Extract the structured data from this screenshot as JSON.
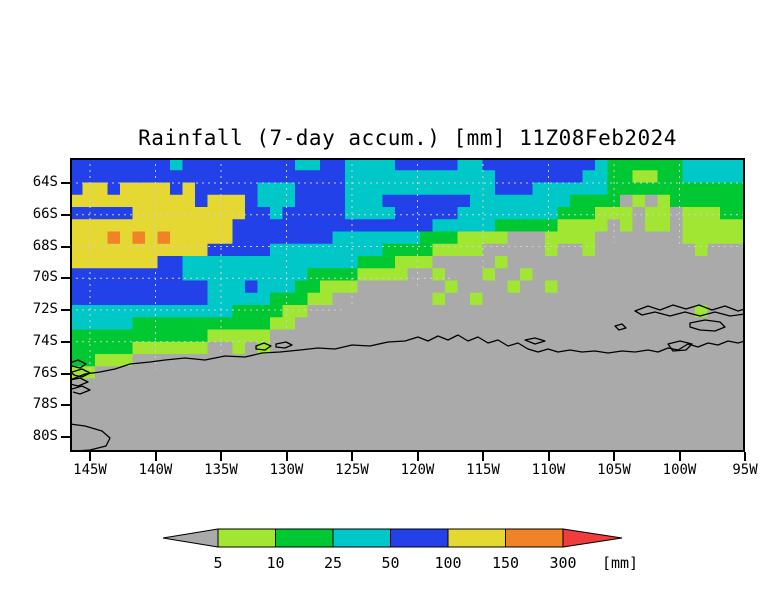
{
  "chart_data": {
    "type": "heatmap",
    "title": "Rainfall (7-day accum.) [mm] 11Z08Feb2024",
    "x_axis": {
      "ticks": [
        "145W",
        "140W",
        "135W",
        "130W",
        "125W",
        "120W",
        "115W",
        "110W",
        "105W",
        "100W",
        "95W"
      ]
    },
    "y_axis": {
      "ticks": [
        "64S",
        "66S",
        "68S",
        "70S",
        "72S",
        "74S",
        "76S",
        "78S",
        "80S"
      ]
    },
    "colorbar": {
      "levels": [
        "5",
        "10",
        "25",
        "50",
        "100",
        "150",
        "300"
      ],
      "unit_label": "[mm]",
      "below_color": "#AAAAAA",
      "above_color": "#F03C3C",
      "segment_colors": [
        "#A0E632",
        "#00C832",
        "#00C8C8",
        "#2341E8",
        "#E6D832",
        "#F08228"
      ]
    },
    "palette": {
      "0": "#AAAAAA",
      "1": "#A0E632",
      "2": "#00C832",
      "3": "#00C8C8",
      "4": "#2341E8",
      "5": "#E6D832",
      "6": "#F08228"
    },
    "palette_meaning": {
      "0": "< 5 mm (gray / no significant rain, incl. land mask)",
      "1": "5-10 mm",
      "2": "10-25 mm",
      "3": "25-50 mm",
      "4": "50-100 mm",
      "5": "100-150 mm",
      "6": "150-300 mm"
    },
    "grid": {
      "cols": 54,
      "rows": 24,
      "encoding": "one char per cell, row-major from map top-left; codes per palette",
      "rows_data": [
        "444444443444444444334433334444433444444444322222233333",
        "444444444444444444444433333333333344444443322112233333",
        "455455554544444333444433333333333344433333322222222222",
        "555555555545554333444433344444443333333322220101222222",
        "444445555555554434444433334444433333333222111011011122",
        "555555555555544444444444444443333322222111101011011111",
        "555656565555544444444333333322211110001111000000011111",
        "555555555554444433333333322221111000001001000000001000",
        "555555544333333333333332221110000010000000000000000000",
        "444444444333333333322221111001000100100000000000000000",
        "444444444443334333221110000000100001001000000000000000",
        "444444444443333322211000000001001000000000000000000000",
        "333333333333322221100000000000000000000000000000001000",
        "333332222222222211000000000000000000000000000000000000",
        "222222222221111100000000000000000000000000000000000000",
        "222221111110010100000000000000000000000000000000000000",
        "221110000000000000000000000000000000000000000000000000",
        "110000000000000000000000000000000000000000000000000000",
        "000000000000000000000000000000000000000000000000000000",
        "000000000000000000000000000000000000000000000000000000",
        "000000000000000000000000000000000000000000000000000000",
        "000000000000000000000000000000000000000000000000000000",
        "000000000000000000000000000000000000000000000000000000",
        "000000000000000000000000000000000000000000000000000000"
      ]
    },
    "coastline": {
      "main": [
        [
          0,
          222
        ],
        [
          15,
          216
        ],
        [
          30,
          214
        ],
        [
          45,
          211
        ],
        [
          60,
          206
        ],
        [
          80,
          204
        ],
        [
          95,
          202
        ],
        [
          115,
          200
        ],
        [
          135,
          202
        ],
        [
          155,
          198
        ],
        [
          175,
          199
        ],
        [
          192,
          195
        ],
        [
          210,
          194
        ],
        [
          230,
          192
        ],
        [
          248,
          190
        ],
        [
          265,
          191
        ],
        [
          282,
          187
        ],
        [
          300,
          188
        ],
        [
          318,
          184
        ],
        [
          335,
          183
        ],
        [
          348,
          179
        ],
        [
          358,
          183
        ],
        [
          368,
          178
        ],
        [
          378,
          182
        ],
        [
          388,
          177
        ],
        [
          398,
          183
        ],
        [
          408,
          179
        ],
        [
          418,
          185
        ],
        [
          428,
          182
        ],
        [
          438,
          188
        ],
        [
          448,
          185
        ],
        [
          458,
          191
        ],
        [
          468,
          194
        ],
        [
          478,
          191
        ],
        [
          488,
          194
        ],
        [
          500,
          192
        ],
        [
          512,
          194
        ],
        [
          525,
          193
        ],
        [
          538,
          195
        ],
        [
          552,
          193
        ],
        [
          565,
          194
        ],
        [
          578,
          192
        ],
        [
          588,
          194
        ],
        [
          598,
          190
        ],
        [
          608,
          192
        ],
        [
          618,
          186
        ],
        [
          628,
          189
        ],
        [
          638,
          185
        ],
        [
          648,
          187
        ],
        [
          658,
          183
        ],
        [
          668,
          185
        ],
        [
          675,
          183
        ]
      ],
      "islands": [
        [
          [
            186,
            188
          ],
          [
            194,
            185
          ],
          [
            201,
            188
          ],
          [
            195,
            192
          ],
          [
            186,
            191
          ]
        ],
        [
          [
            206,
            186
          ],
          [
            216,
            184
          ],
          [
            222,
            187
          ],
          [
            215,
            190
          ],
          [
            206,
            189
          ]
        ],
        [
          [
            455,
            182
          ],
          [
            465,
            180
          ],
          [
            475,
            183
          ],
          [
            465,
            186
          ]
        ],
        [
          [
            545,
            168
          ],
          [
            552,
            166
          ],
          [
            556,
            170
          ],
          [
            549,
            172
          ]
        ],
        [
          [
            565,
            153
          ],
          [
            578,
            148
          ],
          [
            590,
            152
          ],
          [
            603,
            147
          ],
          [
            616,
            151
          ],
          [
            629,
            147
          ],
          [
            642,
            152
          ],
          [
            655,
            148
          ],
          [
            668,
            153
          ],
          [
            675,
            151
          ],
          [
            675,
            156
          ],
          [
            660,
            158
          ],
          [
            645,
            154
          ],
          [
            630,
            158
          ],
          [
            615,
            154
          ],
          [
            600,
            158
          ],
          [
            585,
            154
          ],
          [
            572,
            157
          ]
        ],
        [
          [
            620,
            165
          ],
          [
            635,
            162
          ],
          [
            650,
            164
          ],
          [
            655,
            169
          ],
          [
            645,
            173
          ],
          [
            630,
            172
          ],
          [
            620,
            169
          ]
        ],
        [
          [
            598,
            186
          ],
          [
            610,
            183
          ],
          [
            622,
            186
          ],
          [
            616,
            192
          ],
          [
            603,
            193
          ]
        ]
      ],
      "open_lines": [
        [
          [
            0,
            205
          ],
          [
            8,
            202
          ],
          [
            16,
            206
          ],
          [
            10,
            210
          ],
          [
            2,
            208
          ],
          [
            0,
            209
          ]
        ],
        [
          [
            2,
            214
          ],
          [
            12,
            211
          ],
          [
            20,
            215
          ],
          [
            12,
            219
          ],
          [
            4,
            217
          ],
          [
            2,
            215
          ]
        ],
        [
          [
            0,
            222
          ],
          [
            10,
            220
          ],
          [
            18,
            224
          ],
          [
            8,
            228
          ],
          [
            0,
            226
          ]
        ],
        [
          [
            2,
            231
          ],
          [
            12,
            228
          ],
          [
            20,
            232
          ],
          [
            10,
            236
          ],
          [
            3,
            234
          ]
        ],
        [
          [
            0,
            266
          ],
          [
            15,
            268
          ],
          [
            32,
            273
          ],
          [
            40,
            280
          ],
          [
            36,
            288
          ],
          [
            20,
            292
          ],
          [
            5,
            293
          ],
          [
            0,
            293
          ]
        ]
      ]
    },
    "layout_hints": {
      "grid_lines": "dashed light-gray every 2 deg lat / 5 deg lon, hidden over dry gray land",
      "legend_position": "horizontal colorbar centered below map"
    }
  }
}
